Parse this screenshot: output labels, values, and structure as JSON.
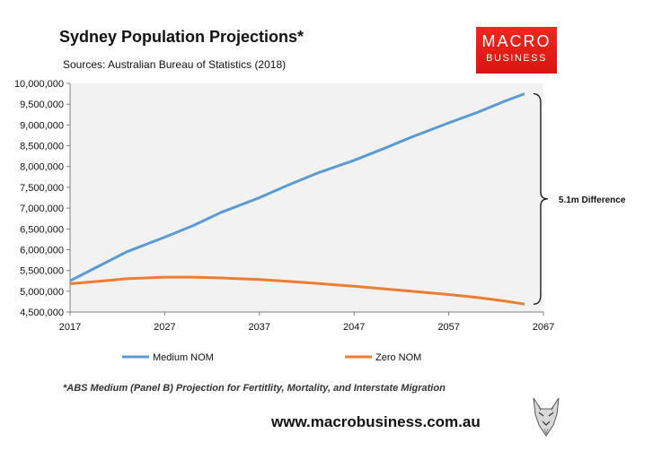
{
  "title": "Sydney Population Projections*",
  "subtitle": "Sources: Australian Bureau of Statistics (2018)",
  "logo": {
    "line1": "MACRO",
    "line2": "BUSINESS",
    "color": "#e01d15"
  },
  "footnote": "*ABS Medium (Panel B) Projection for Fertitlity, Mortality, and Interstate Migration",
  "website": "www.macrobusiness.com.au",
  "chart_data": {
    "type": "line",
    "x": [
      2017,
      2020,
      2023,
      2027,
      2030,
      2033,
      2037,
      2040,
      2043,
      2047,
      2050,
      2053,
      2057,
      2060,
      2063,
      2065
    ],
    "series": [
      {
        "name": "Medium NOM",
        "color": "#5b9bd5",
        "values": [
          5250000,
          5600000,
          5950000,
          6300000,
          6580000,
          6900000,
          7250000,
          7550000,
          7830000,
          8150000,
          8420000,
          8700000,
          9050000,
          9300000,
          9580000,
          9750000
        ]
      },
      {
        "name": "Zero NOM",
        "color": "#ed7d31",
        "values": [
          5180000,
          5240000,
          5300000,
          5340000,
          5340000,
          5320000,
          5280000,
          5240000,
          5190000,
          5120000,
          5060000,
          5000000,
          4920000,
          4850000,
          4760000,
          4690000
        ]
      }
    ],
    "xlim": [
      2017,
      2067
    ],
    "ylim": [
      4500000,
      10000000
    ],
    "xticks": [
      "2017",
      "2027",
      "2037",
      "2047",
      "2057",
      "2067"
    ],
    "yticks": [
      "4,500,000",
      "5,000,000",
      "5,500,000",
      "6,000,000",
      "6,500,000",
      "7,000,000",
      "7,500,000",
      "8,000,000",
      "8,500,000",
      "9,000,000",
      "9,500,000",
      "10,000,000"
    ],
    "annotation": "5.1m Difference",
    "plot_background": "#f2f2f2",
    "legend_position": "bottom"
  }
}
